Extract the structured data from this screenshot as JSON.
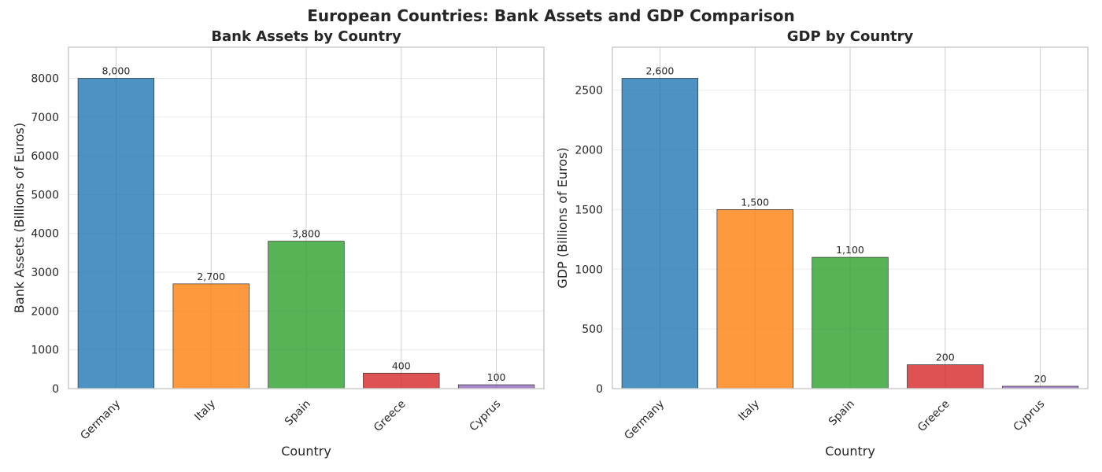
{
  "figure": {
    "title": "European Countries: Bank Assets and GDP Comparison"
  },
  "chart_data": [
    {
      "type": "bar",
      "title": "Bank Assets by Country",
      "xlabel": "Country",
      "ylabel": "Bank Assets (Billions of Euros)",
      "categories": [
        "Germany",
        "Italy",
        "Spain",
        "Greece",
        "Cyprus"
      ],
      "values": [
        8000,
        2700,
        3800,
        400,
        100
      ],
      "value_labels": [
        "8,000",
        "2,700",
        "3,800",
        "400",
        "100"
      ],
      "colors": [
        "#1f77b4",
        "#ff7f0e",
        "#2ca02c",
        "#d62728",
        "#9467bd"
      ],
      "ylim": [
        0,
        8800
      ],
      "yticks": [
        0,
        1000,
        2000,
        3000,
        4000,
        5000,
        6000,
        7000,
        8000
      ],
      "grid": true,
      "legend": "none"
    },
    {
      "type": "bar",
      "title": "GDP by Country",
      "xlabel": "Country",
      "ylabel": "GDP (Billions of Euros)",
      "categories": [
        "Germany",
        "Italy",
        "Spain",
        "Greece",
        "Cyprus"
      ],
      "values": [
        2600,
        1500,
        1100,
        200,
        20
      ],
      "value_labels": [
        "2,600",
        "1,500",
        "1,100",
        "200",
        "20"
      ],
      "colors": [
        "#1f77b4",
        "#ff7f0e",
        "#2ca02c",
        "#d62728",
        "#9467bd"
      ],
      "ylim": [
        0,
        2860
      ],
      "yticks": [
        0,
        500,
        1000,
        1500,
        2000,
        2500
      ],
      "grid": true,
      "legend": "none"
    }
  ]
}
